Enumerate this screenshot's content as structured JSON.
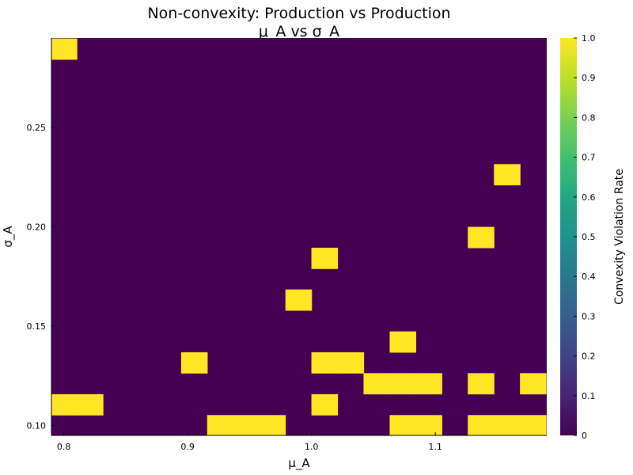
{
  "chart_data": {
    "type": "heatmap",
    "title_line1": "Non-convexity: Production vs Production",
    "title_line2": "μ_A vs σ_A",
    "xlabel": "μ_A",
    "ylabel": "σ_A",
    "colorbar_label": "Convexity Violation Rate",
    "colorscale": "viridis",
    "colorbar_range": [
      0,
      1.0
    ],
    "colorbar_ticks": [
      "0",
      "0.1",
      "0.2",
      "0.3",
      "0.4",
      "0.5",
      "0.6",
      "0.7",
      "0.8",
      "0.9",
      "1.0"
    ],
    "colorbar_tick_values": [
      0,
      0.1,
      0.2,
      0.3,
      0.4,
      0.5,
      0.6,
      0.7,
      0.8,
      0.9,
      1.0
    ],
    "x_ticks": [
      "0.8",
      "0.9",
      "1.0",
      "1.1"
    ],
    "x_tick_values": [
      0.8,
      0.9,
      1.0,
      1.1
    ],
    "y_ticks": [
      "0.10",
      "0.15",
      "0.20",
      "0.25"
    ],
    "y_tick_values": [
      0.1,
      0.15,
      0.2,
      0.25
    ],
    "xlim": [
      0.79,
      1.19
    ],
    "ylim": [
      0.095,
      0.295
    ],
    "grid": false,
    "colors": {
      "low": "#440154",
      "high": "#fde725"
    },
    "x_centers": [
      0.8,
      0.8211,
      0.8421,
      0.8632,
      0.8842,
      0.9053,
      0.9263,
      0.9474,
      0.9684,
      0.9895,
      1.0105,
      1.0316,
      1.0526,
      1.0737,
      1.0947,
      1.1158,
      1.1368,
      1.1579,
      1.1789,
      1.2
    ],
    "y_centers": [
      0.1,
      0.1105,
      0.1211,
      0.1316,
      0.1421,
      0.1526,
      0.1632,
      0.1737,
      0.1842,
      0.1947,
      0.2053,
      0.2158,
      0.2263,
      0.2368,
      0.2474,
      0.2579,
      0.2684,
      0.2789,
      0.2895,
      0.3
    ],
    "nonzero_cells": [
      {
        "mu_A": 0.8,
        "sigma_A": 0.2895,
        "value": 1.0
      },
      {
        "mu_A": 0.8,
        "sigma_A": 0.1105,
        "value": 1.0
      },
      {
        "mu_A": 0.8211,
        "sigma_A": 0.1105,
        "value": 1.0
      },
      {
        "mu_A": 0.9053,
        "sigma_A": 0.1316,
        "value": 1.0
      },
      {
        "mu_A": 0.9263,
        "sigma_A": 0.1,
        "value": 1.0
      },
      {
        "mu_A": 0.9474,
        "sigma_A": 0.1,
        "value": 1.0
      },
      {
        "mu_A": 0.9684,
        "sigma_A": 0.1,
        "value": 1.0
      },
      {
        "mu_A": 0.9895,
        "sigma_A": 0.1632,
        "value": 1.0
      },
      {
        "mu_A": 1.0105,
        "sigma_A": 0.1842,
        "value": 1.0
      },
      {
        "mu_A": 1.0105,
        "sigma_A": 0.1316,
        "value": 1.0
      },
      {
        "mu_A": 1.0316,
        "sigma_A": 0.1316,
        "value": 1.0
      },
      {
        "mu_A": 1.0105,
        "sigma_A": 0.1105,
        "value": 1.0
      },
      {
        "mu_A": 1.0526,
        "sigma_A": 0.1211,
        "value": 1.0
      },
      {
        "mu_A": 1.0737,
        "sigma_A": 0.1211,
        "value": 1.0
      },
      {
        "mu_A": 1.0947,
        "sigma_A": 0.1211,
        "value": 1.0
      },
      {
        "mu_A": 1.0737,
        "sigma_A": 0.1421,
        "value": 1.0
      },
      {
        "mu_A": 1.0737,
        "sigma_A": 0.1,
        "value": 1.0
      },
      {
        "mu_A": 1.0947,
        "sigma_A": 0.1,
        "value": 1.0
      },
      {
        "mu_A": 1.1368,
        "sigma_A": 0.1947,
        "value": 1.0
      },
      {
        "mu_A": 1.1579,
        "sigma_A": 0.2263,
        "value": 1.0
      },
      {
        "mu_A": 1.1368,
        "sigma_A": 0.1211,
        "value": 1.0
      },
      {
        "mu_A": 1.1789,
        "sigma_A": 0.1211,
        "value": 1.0
      },
      {
        "mu_A": 1.1368,
        "sigma_A": 0.1,
        "value": 1.0
      },
      {
        "mu_A": 1.1579,
        "sigma_A": 0.1,
        "value": 1.0
      },
      {
        "mu_A": 1.1789,
        "sigma_A": 0.1,
        "value": 1.0
      }
    ],
    "default_value": 0
  }
}
